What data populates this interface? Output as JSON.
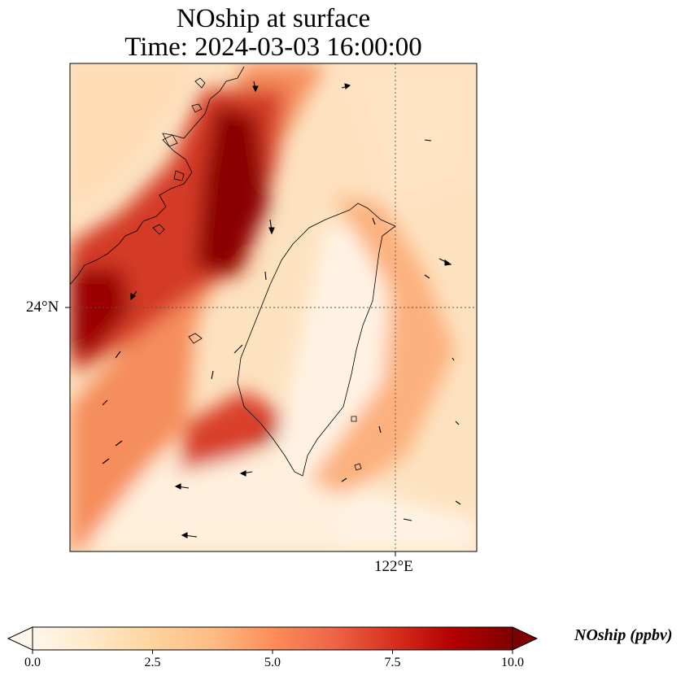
{
  "title": {
    "line1": "NOship at surface",
    "line2": "Time: 2024-03-03 16:00:00"
  },
  "map": {
    "lon_tick_label": "122°E",
    "lat_tick_label": "24°N",
    "gridlines": "dotted",
    "coastline": "Fujian coast and Taiwan",
    "wind_vectors": "sparse black arrows"
  },
  "colorbar": {
    "label": "NOship (ppbv)",
    "colormap": "OrRd",
    "vmin": 0.0,
    "vmax": 10.0,
    "extend": "both",
    "ticks": [
      "0.0",
      "2.5",
      "5.0",
      "7.5",
      "10.0"
    ],
    "colors": [
      "#fff7ec",
      "#fee8c8",
      "#fdd49e",
      "#fdbb84",
      "#fc8d59",
      "#ef6548",
      "#d7301f",
      "#b30000",
      "#7f0000"
    ]
  }
}
